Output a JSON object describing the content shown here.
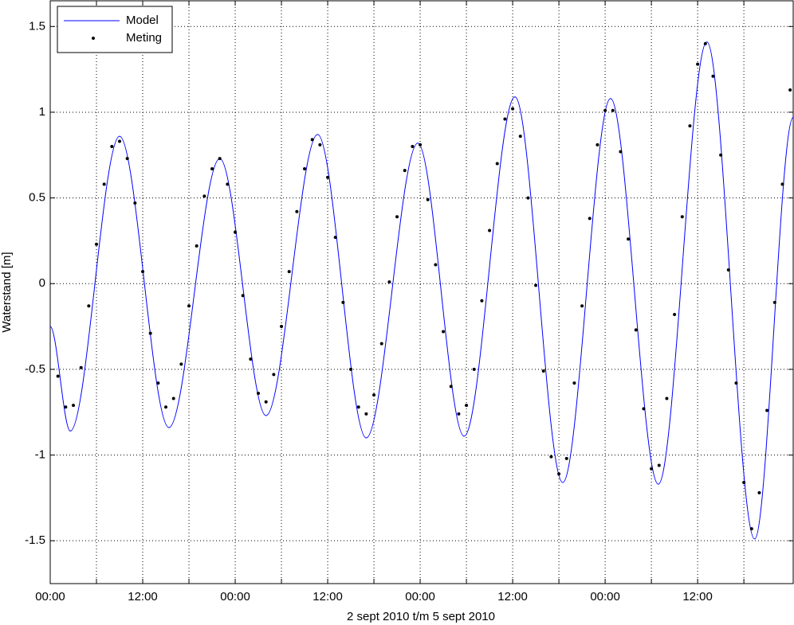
{
  "chart_data": {
    "type": "line",
    "xlabel": "2 sept 2010 t/m 5 sept 2010",
    "ylabel": "Waterstand [m]",
    "xlim": [
      0,
      96.4
    ],
    "ylim": [
      -1.75,
      1.65
    ],
    "xticks": [
      {
        "value": 0,
        "label": "00:00"
      },
      {
        "value": 12,
        "label": "12:00"
      },
      {
        "value": 24,
        "label": "00:00"
      },
      {
        "value": 36,
        "label": "12:00"
      },
      {
        "value": 48,
        "label": "00:00"
      },
      {
        "value": 60,
        "label": "12:00"
      },
      {
        "value": 72,
        "label": "00:00"
      },
      {
        "value": 84,
        "label": "12:00"
      }
    ],
    "minor_xticks": [
      6,
      18,
      30,
      42,
      54,
      66,
      78,
      90
    ],
    "yticks": [
      -1.5,
      -1,
      -0.5,
      0,
      0.5,
      1,
      1.5
    ],
    "grid": true,
    "legend": "upper left",
    "series": [
      {
        "name": "Model",
        "color": "#0000ff",
        "style": "line",
        "x": [
          0,
          2.6,
          9,
          15.4,
          22,
          28,
          34.7,
          41,
          47.7,
          53.7,
          60.3,
          66.5,
          72.7,
          78.9,
          85.2,
          91.4,
          96.4
        ],
        "values": [
          -0.25,
          -0.86,
          0.86,
          -0.84,
          0.73,
          -0.77,
          0.87,
          -0.9,
          0.82,
          -0.89,
          1.09,
          -1.16,
          1.08,
          -1.17,
          1.41,
          -1.49,
          0.97
        ]
      },
      {
        "name": "Meting",
        "color": "#000000",
        "style": "markers",
        "x": [
          1,
          2,
          3,
          4,
          5,
          6,
          7,
          8,
          9,
          10,
          11,
          12,
          13,
          14,
          15,
          16,
          17,
          18,
          19,
          20,
          21,
          22,
          23,
          24,
          25,
          26,
          27,
          28,
          29,
          30,
          31,
          32,
          33,
          34,
          35,
          36,
          37,
          38,
          39,
          40,
          41,
          42,
          43,
          44,
          45,
          46,
          47,
          48,
          49,
          50,
          51,
          52,
          53,
          54,
          55,
          56,
          57,
          58,
          59,
          60,
          61,
          62,
          63,
          64,
          65,
          66,
          67,
          68,
          69,
          70,
          71,
          72,
          73,
          74,
          75,
          76,
          77,
          78,
          79,
          80,
          81,
          82,
          83,
          84,
          85,
          86,
          87,
          88,
          89,
          90,
          91,
          92,
          93,
          94,
          95,
          96
        ],
        "values": [
          -0.54,
          -0.72,
          -0.71,
          -0.49,
          -0.13,
          0.23,
          0.58,
          0.8,
          0.83,
          0.73,
          0.47,
          0.07,
          -0.29,
          -0.58,
          -0.72,
          -0.67,
          -0.47,
          -0.13,
          0.22,
          0.51,
          0.67,
          0.73,
          0.58,
          0.3,
          -0.07,
          -0.44,
          -0.64,
          -0.69,
          -0.53,
          -0.25,
          0.07,
          0.42,
          0.67,
          0.84,
          0.81,
          0.62,
          0.27,
          -0.11,
          -0.5,
          -0.72,
          -0.76,
          -0.65,
          -0.35,
          0.01,
          0.39,
          0.66,
          0.8,
          0.81,
          0.49,
          0.11,
          -0.28,
          -0.6,
          -0.76,
          -0.71,
          -0.5,
          -0.1,
          0.31,
          0.7,
          0.96,
          1.02,
          0.86,
          0.5,
          -0.01,
          -0.51,
          -1.01,
          -1.11,
          -1.02,
          -0.58,
          -0.13,
          0.38,
          0.81,
          1.01,
          1.01,
          0.77,
          0.26,
          -0.27,
          -0.73,
          -1.08,
          -1.06,
          -0.67,
          -0.18,
          0.39,
          0.92,
          1.28,
          1.4,
          1.21,
          0.75,
          0.08,
          -0.58,
          -1.16,
          -1.43,
          -1.22,
          -0.74,
          -0.11,
          0.58,
          1.13
        ]
      }
    ]
  }
}
